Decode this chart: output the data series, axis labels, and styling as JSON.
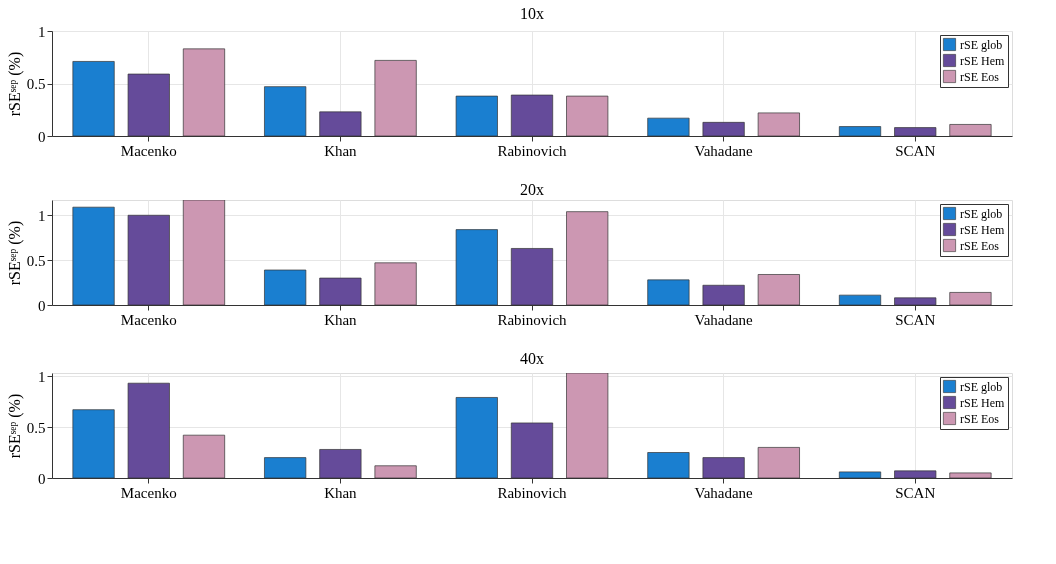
{
  "chart_data": [
    {
      "type": "bar",
      "title": "10x",
      "ylabel": "rSEˢᵉᵖ (%)",
      "categories": [
        "Macenko",
        "Khan",
        "Rabinovich",
        "Vahadane",
        "SCAN"
      ],
      "ylim": [
        0,
        1
      ],
      "yticks": [
        0,
        0.5,
        1
      ],
      "grid": true,
      "legend": "top right",
      "series": [
        {
          "name": "rSE glob",
          "color": "#1a7fd0",
          "values": [
            0.71,
            0.47,
            0.38,
            0.17,
            0.09
          ]
        },
        {
          "name": "rSE Hem",
          "color": "#654b9a",
          "values": [
            0.59,
            0.23,
            0.39,
            0.13,
            0.08
          ]
        },
        {
          "name": "rSE Eos",
          "color": "#cc97b2",
          "values": [
            0.83,
            0.72,
            0.38,
            0.22,
            0.11
          ]
        }
      ]
    },
    {
      "type": "bar",
      "title": "20x",
      "ylabel": "rSEˢᵉᵖ (%)",
      "categories": [
        "Macenko",
        "Khan",
        "Rabinovich",
        "Vahadane",
        "SCAN"
      ],
      "ylim": [
        0,
        1.17
      ],
      "yticks": [
        0,
        0.5,
        1
      ],
      "grid": true,
      "legend": "top right",
      "series": [
        {
          "name": "rSE glob",
          "color": "#1a7fd0",
          "values": [
            1.09,
            0.39,
            0.84,
            0.28,
            0.11
          ]
        },
        {
          "name": "rSE Hem",
          "color": "#654b9a",
          "values": [
            1.0,
            0.3,
            0.63,
            0.22,
            0.08
          ]
        },
        {
          "name": "rSE Eos",
          "color": "#cc97b2",
          "values": [
            1.17,
            0.47,
            1.04,
            0.34,
            0.14
          ]
        }
      ]
    },
    {
      "type": "bar",
      "title": "40x",
      "ylabel": "rSEˢᵉᵖ (%)",
      "categories": [
        "Macenko",
        "Khan",
        "Rabinovich",
        "Vahadane",
        "SCAN"
      ],
      "ylim": [
        0,
        1.03
      ],
      "yticks": [
        0,
        0.5,
        1
      ],
      "grid": true,
      "legend": "top right",
      "series": [
        {
          "name": "rSE glob",
          "color": "#1a7fd0",
          "values": [
            0.67,
            0.2,
            0.79,
            0.25,
            0.06
          ]
        },
        {
          "name": "rSE Hem",
          "color": "#654b9a",
          "values": [
            0.93,
            0.28,
            0.54,
            0.2,
            0.07
          ]
        },
        {
          "name": "rSE Eos",
          "color": "#cc97b2",
          "values": [
            0.42,
            0.12,
            1.03,
            0.3,
            0.05
          ]
        }
      ]
    }
  ]
}
